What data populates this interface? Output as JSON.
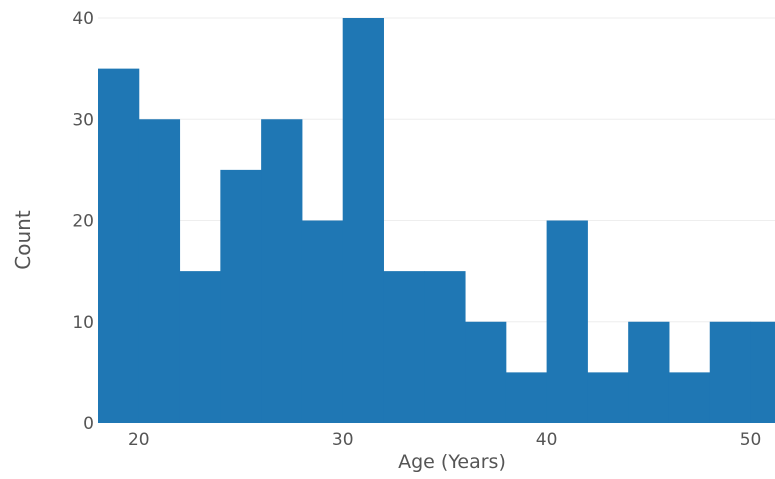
{
  "chart_data": {
    "type": "bar",
    "title": "",
    "xlabel": "Age (Years)",
    "ylabel": "Count",
    "bin_width": 2,
    "bins": [
      {
        "x_start": 18,
        "x_end": 20,
        "count": 35
      },
      {
        "x_start": 20,
        "x_end": 22,
        "count": 30
      },
      {
        "x_start": 22,
        "x_end": 24,
        "count": 15
      },
      {
        "x_start": 24,
        "x_end": 26,
        "count": 25
      },
      {
        "x_start": 26,
        "x_end": 28,
        "count": 30
      },
      {
        "x_start": 28,
        "x_end": 30,
        "count": 20
      },
      {
        "x_start": 30,
        "x_end": 32,
        "count": 40
      },
      {
        "x_start": 32,
        "x_end": 34,
        "count": 15
      },
      {
        "x_start": 34,
        "x_end": 36,
        "count": 15
      },
      {
        "x_start": 36,
        "x_end": 38,
        "count": 10
      },
      {
        "x_start": 38,
        "x_end": 40,
        "count": 5
      },
      {
        "x_start": 40,
        "x_end": 42,
        "count": 20
      },
      {
        "x_start": 42,
        "x_end": 44,
        "count": 5
      },
      {
        "x_start": 44,
        "x_end": 46,
        "count": 10
      },
      {
        "x_start": 46,
        "x_end": 48,
        "count": 5
      },
      {
        "x_start": 48,
        "x_end": 50,
        "count": 10
      },
      {
        "x_start": 50,
        "x_end": 52,
        "count": 10
      }
    ],
    "xlim": [
      18,
      51.2
    ],
    "ylim": [
      0,
      40
    ],
    "x_ticks": [
      {
        "value": 20,
        "label": "20"
      },
      {
        "value": 30,
        "label": "30"
      },
      {
        "value": 40,
        "label": "40"
      },
      {
        "value": 50,
        "label": "50"
      }
    ],
    "y_ticks": [
      {
        "value": 0,
        "label": "0"
      },
      {
        "value": 10,
        "label": "10"
      },
      {
        "value": 20,
        "label": "20"
      },
      {
        "value": 30,
        "label": "30"
      },
      {
        "value": 40,
        "label": "40"
      }
    ],
    "grid": true,
    "legend": "none",
    "bar_color": "#1f77b4",
    "grid_color": "#eeeeee",
    "text_color": "#555555"
  }
}
